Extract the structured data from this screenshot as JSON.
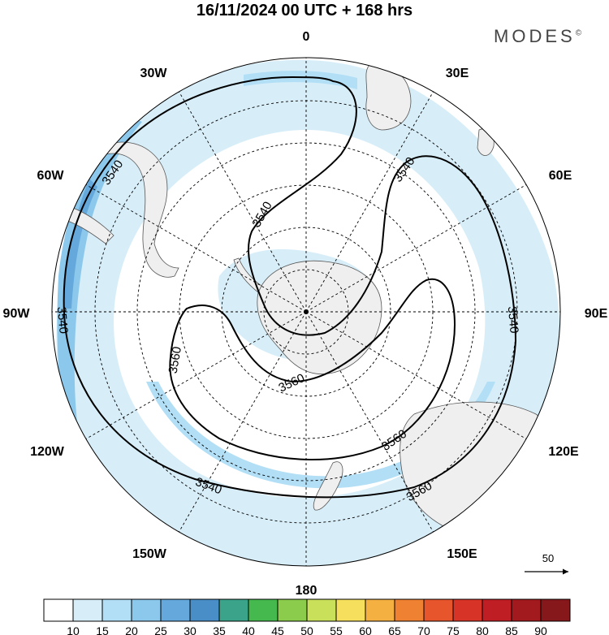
{
  "title": "16/11/2024  00 UTC  + 168 hrs",
  "brand": "MODES",
  "brand_mark": "©",
  "longitude_labels": [
    {
      "key": "0",
      "text": "0"
    },
    {
      "key": "30E",
      "text": "30E"
    },
    {
      "key": "60E",
      "text": "60E"
    },
    {
      "key": "90E",
      "text": "90E"
    },
    {
      "key": "120E",
      "text": "120E"
    },
    {
      "key": "150E",
      "text": "150E"
    },
    {
      "key": "180",
      "text": "180"
    },
    {
      "key": "150W",
      "text": "150W"
    },
    {
      "key": "120W",
      "text": "120W"
    },
    {
      "key": "90W",
      "text": "90W"
    },
    {
      "key": "60W",
      "text": "60W"
    },
    {
      "key": "30W",
      "text": "30W"
    }
  ],
  "contour_labels": [
    "3540",
    "3540",
    "3540",
    "3540",
    "3540",
    "3540",
    "3560",
    "3560",
    "3560",
    "3560"
  ],
  "vector_reference": "50",
  "colorbar": {
    "ticks": [
      "10",
      "15",
      "20",
      "25",
      "30",
      "35",
      "40",
      "45",
      "50",
      "55",
      "60",
      "65",
      "70",
      "75",
      "80",
      "85",
      "90"
    ],
    "colors": [
      "#ffffff",
      "#d7eef9",
      "#b2dff5",
      "#8cc8ec",
      "#65a8db",
      "#4a8ec8",
      "#3aa38a",
      "#45b84e",
      "#8ccc4c",
      "#c9e05a",
      "#f7df5e",
      "#f5b042",
      "#ef8132",
      "#e6552b",
      "#d83327",
      "#bf1f24",
      "#a31a1e",
      "#86171a"
    ]
  },
  "colors": {
    "land": "#efefef",
    "coast": "#555555",
    "wind_light": "#d7eef9",
    "wind_mid": "#b2dff5",
    "wind_strong": "#65a8db",
    "contour": "#000000"
  }
}
